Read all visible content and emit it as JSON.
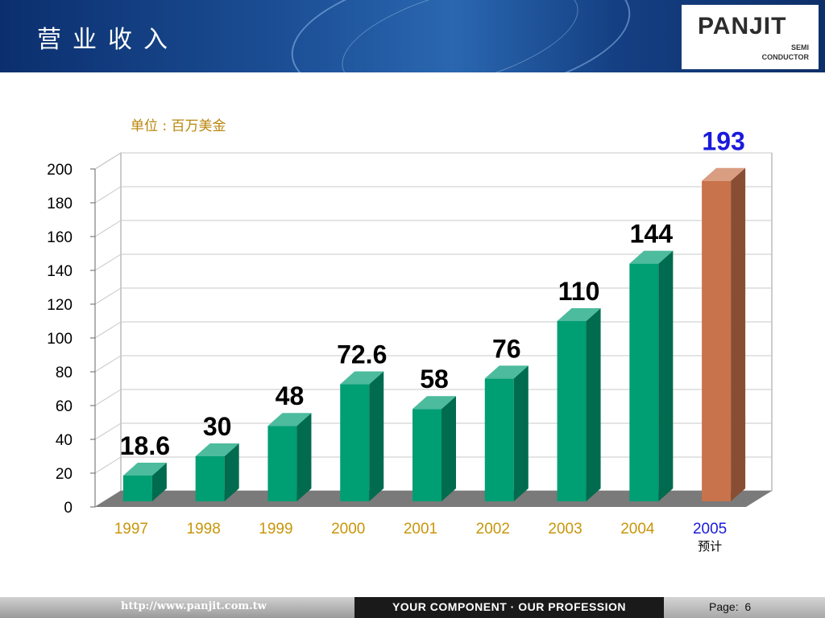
{
  "header": {
    "title": "营业收入"
  },
  "logo": {
    "brand_main": "PAN",
    "brand_accent": "JIT",
    "sub1": "SEMI",
    "sub2": "CONDUCTOR"
  },
  "footer": {
    "url": "http://www.panjit.com.tw",
    "slogan": "YOUR COMPONENT · OUR PROFESSION",
    "page_label": "Page:",
    "page_number": "6"
  },
  "colors": {
    "bar": "#009e73",
    "bar_highlight": "#c8734b",
    "category_text": "#c8960a",
    "highlight_text": "#1a1adc",
    "header_bg": "#1c4f96"
  },
  "chart_data": {
    "type": "bar",
    "unit_label": "单位 : 百万美金",
    "categories": [
      "1997",
      "1998",
      "1999",
      "2000",
      "2001",
      "2002",
      "2003",
      "2004",
      "2005"
    ],
    "values": [
      18.6,
      30,
      48,
      72.6,
      58,
      76,
      110,
      144,
      193
    ],
    "data_labels": [
      "18.6",
      "30",
      "48",
      "72.6",
      "58",
      "76",
      "110",
      "144",
      "193"
    ],
    "highlight_index": 8,
    "highlight_note": "预计",
    "ylim": [
      0,
      200
    ],
    "yticks": [
      0,
      20,
      40,
      60,
      80,
      100,
      120,
      140,
      160,
      180,
      200
    ],
    "grid": true
  }
}
